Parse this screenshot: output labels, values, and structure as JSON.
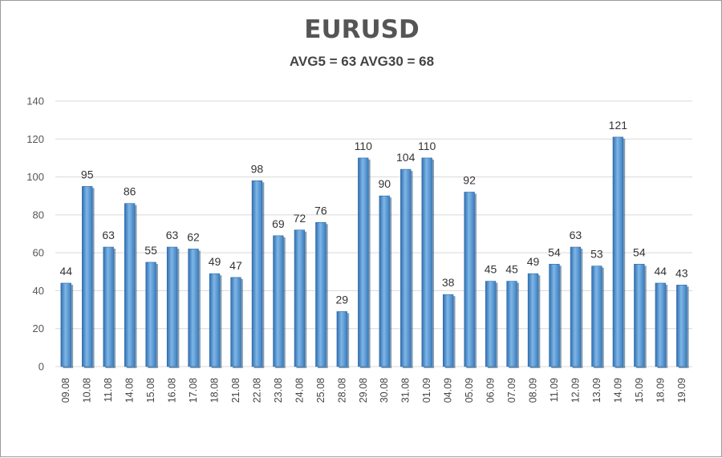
{
  "chart_data": {
    "type": "bar",
    "title": "EURUSD",
    "subtitle": "AVG5 = 63 AVG30 = 68",
    "categories": [
      "09.08",
      "10.08",
      "11.08",
      "14.08",
      "15.08",
      "16.08",
      "17.08",
      "18.08",
      "21.08",
      "22.08",
      "23.08",
      "24.08",
      "25.08",
      "28.08",
      "29.08",
      "30.08",
      "31.08",
      "01.09",
      "04.09",
      "05.09",
      "06.09",
      "07.09",
      "08.09",
      "11.09",
      "12.09",
      "13.09",
      "14.09",
      "15.09",
      "18.09",
      "19.09"
    ],
    "values": [
      44,
      95,
      63,
      86,
      55,
      63,
      62,
      49,
      47,
      98,
      69,
      72,
      76,
      29,
      110,
      90,
      104,
      110,
      38,
      92,
      45,
      45,
      49,
      54,
      63,
      53,
      121,
      54,
      44,
      43
    ],
    "ylim": [
      0,
      140
    ],
    "yticks": [
      0,
      20,
      40,
      60,
      80,
      100,
      120,
      140
    ],
    "grid": true,
    "data_labels": true,
    "bar_color": "#5b9bd5"
  }
}
